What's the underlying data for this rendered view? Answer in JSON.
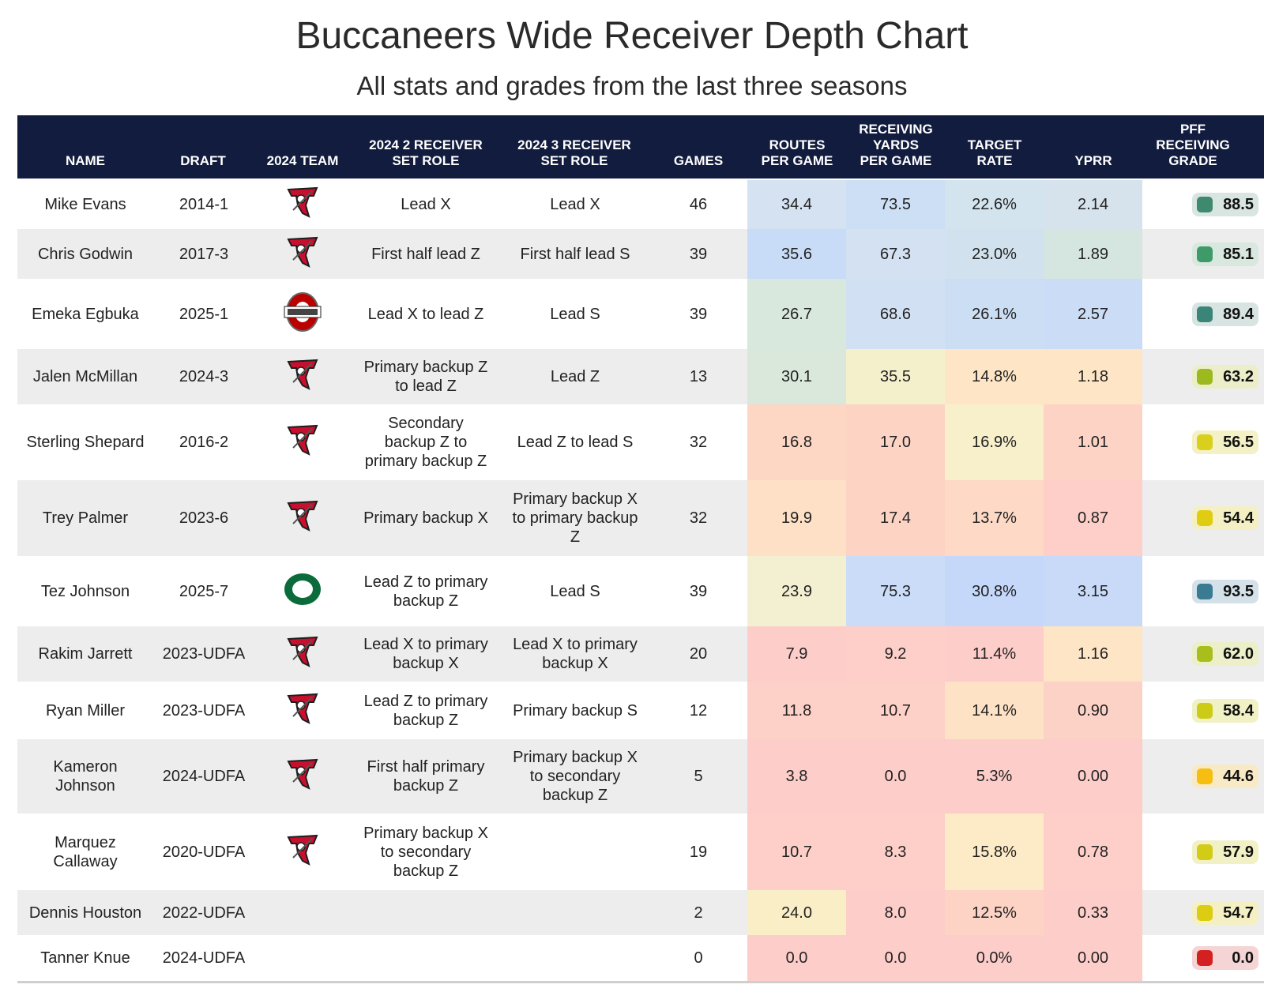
{
  "title": "Buccaneers Wide Receiver Depth Chart",
  "subtitle": "All stats and grades from the last three seasons",
  "headers": {
    "name": "NAME",
    "draft": "DRAFT",
    "team": "2024 TEAM",
    "role2": [
      "2024 2 RECEIVER",
      "SET ROLE"
    ],
    "role3": [
      "2024 3 RECEIVER",
      "SET ROLE"
    ],
    "games": "GAMES",
    "routes": [
      "ROUTES",
      "PER GAME"
    ],
    "yards": [
      "RECEIVING",
      "YARDS",
      "PER GAME"
    ],
    "target": [
      "TARGET",
      "RATE"
    ],
    "yprr": "YPRR",
    "grade": [
      "PFF",
      "RECEIVING",
      "GRADE"
    ]
  },
  "rows": [
    {
      "name": [
        "Mike Evans"
      ],
      "draft": "2014-1",
      "team": "buccaneers-logo",
      "role2": [
        "Lead X"
      ],
      "role3": [
        "Lead X"
      ],
      "games": "46",
      "routes": "34.4",
      "yards": "73.5",
      "target": "22.6%",
      "yprr": "2.14",
      "grade": "88.5",
      "colors": {
        "routes": "#d5e2f2",
        "yards": "#cddff5",
        "target": "#d4e4ee",
        "yprr": "#d6e3ec",
        "gradebg": "#d9e5e1",
        "dot": "#3f8a6f"
      }
    },
    {
      "name": [
        "Chris Godwin"
      ],
      "draft": "2017-3",
      "team": "buccaneers-logo",
      "role2": [
        "First half lead Z"
      ],
      "role3": [
        "First half lead S"
      ],
      "games": "39",
      "routes": "35.6",
      "yards": "67.3",
      "target": "23.0%",
      "yprr": "1.89",
      "grade": "85.1",
      "colors": {
        "routes": "#c9dcf7",
        "yards": "#d4e1f2",
        "target": "#d1e2ee",
        "yprr": "#d5e6e1",
        "gradebg": "#d9e8de",
        "dot": "#3f9a6a"
      }
    },
    {
      "name": [
        "Emeka Egbuka"
      ],
      "draft": "2025-1",
      "team": "ohio-state-logo",
      "role2": [
        "Lead X to lead Z"
      ],
      "role3": [
        "Lead S"
      ],
      "games": "39",
      "routes": "26.7",
      "yards": "68.6",
      "target": "26.1%",
      "yprr": "2.57",
      "grade": "89.4",
      "colors": {
        "routes": "#d9e8dc",
        "yards": "#d2e0f3",
        "target": "#ccdef4",
        "yprr": "#cbdcf7",
        "gradebg": "#d8e4e2",
        "dot": "#3a8577"
      }
    },
    {
      "name": [
        "Jalen McMillan"
      ],
      "draft": "2024-3",
      "team": "buccaneers-logo",
      "role2": [
        "Primary backup Z",
        "to lead Z"
      ],
      "role3": [
        "Lead Z"
      ],
      "games": "13",
      "routes": "30.1",
      "yards": "35.5",
      "target": "14.8%",
      "yprr": "1.18",
      "grade": "63.2",
      "colors": {
        "routes": "#d9e8da",
        "yards": "#f5f0cc",
        "target": "#fde5c5",
        "yprr": "#fde5c5",
        "gradebg": "#eceec9",
        "dot": "#9cba1e"
      }
    },
    {
      "name": [
        "Sterling Shepard"
      ],
      "draft": "2016-2",
      "team": "buccaneers-logo",
      "role2": [
        "Secondary",
        "backup Z to",
        "primary backup Z"
      ],
      "role3": [
        "Lead Z to lead S"
      ],
      "games": "32",
      "routes": "16.8",
      "yards": "17.0",
      "target": "16.9%",
      "yprr": "1.01",
      "grade": "56.5",
      "colors": {
        "routes": "#fdd6c4",
        "yards": "#fdd3c4",
        "target": "#f8efcb",
        "yprr": "#fdd3c6",
        "gradebg": "#f4f1c6",
        "dot": "#d8d01c"
      }
    },
    {
      "name": [
        "Trey Palmer"
      ],
      "draft": "2023-6",
      "team": "buccaneers-logo",
      "role2": [
        "Primary backup X"
      ],
      "role3": [
        "Primary backup X",
        "to primary backup",
        "Z"
      ],
      "games": "32",
      "routes": "19.9",
      "yards": "17.4",
      "target": "13.7%",
      "yprr": "0.87",
      "grade": "54.4",
      "colors": {
        "routes": "#fde0c5",
        "yards": "#fdd3c4",
        "target": "#fdd9c6",
        "yprr": "#fdcfc8",
        "gradebg": "#f4f0c4",
        "dot": "#e0cc10"
      }
    },
    {
      "name": [
        "Tez Johnson"
      ],
      "draft": "2025-7",
      "team": "oregon-logo",
      "role2": [
        "Lead Z to primary",
        "backup Z"
      ],
      "role3": [
        "Lead S"
      ],
      "games": "39",
      "routes": "23.9",
      "yards": "75.3",
      "target": "30.8%",
      "yprr": "3.15",
      "grade": "93.5",
      "colors": {
        "routes": "#f3efd1",
        "yards": "#cadcf8",
        "target": "#c5d8f9",
        "yprr": "#c8daf8",
        "gradebg": "#d5e1e8",
        "dot": "#3a7a92"
      }
    },
    {
      "name": [
        "Rakim Jarrett"
      ],
      "draft": "2023-UDFA",
      "team": "buccaneers-logo",
      "role2": [
        "Lead X to primary",
        "backup X"
      ],
      "role3": [
        "Lead X to primary",
        "backup X"
      ],
      "games": "20",
      "routes": "7.9",
      "yards": "9.2",
      "target": "11.4%",
      "yprr": "1.16",
      "grade": "62.0",
      "colors": {
        "routes": "#fdcdc9",
        "yards": "#fdcfc8",
        "target": "#fdcdc9",
        "yprr": "#fde5c5",
        "gradebg": "#ecefc8",
        "dot": "#a8be1c"
      }
    },
    {
      "name": [
        "Ryan Miller"
      ],
      "draft": "2023-UDFA",
      "team": "buccaneers-logo",
      "role2": [
        "Lead Z to primary",
        "backup Z"
      ],
      "role3": [
        "Primary backup S"
      ],
      "games": "12",
      "routes": "11.8",
      "yards": "10.7",
      "target": "14.1%",
      "yprr": "0.90",
      "grade": "58.4",
      "colors": {
        "routes": "#fdd0c8",
        "yards": "#fdd0c8",
        "target": "#fde2c5",
        "yprr": "#fdd2c6",
        "gradebg": "#f1f1c6",
        "dot": "#cccc18"
      }
    },
    {
      "name": [
        "Kameron",
        "Johnson"
      ],
      "draft": "2024-UDFA",
      "team": "buccaneers-logo",
      "role2": [
        "First half primary",
        "backup Z"
      ],
      "role3": [
        "Primary backup X",
        "to secondary",
        "backup Z"
      ],
      "games": "5",
      "routes": "3.8",
      "yards": "0.0",
      "target": "5.3%",
      "yprr": "0.00",
      "grade": "44.6",
      "colors": {
        "routes": "#fdcdc9",
        "yards": "#fdcdc9",
        "target": "#fdcdc9",
        "yprr": "#fdcdc9",
        "gradebg": "#f8eac4",
        "dot": "#f5be10"
      }
    },
    {
      "name": [
        "Marquez",
        "Callaway"
      ],
      "draft": "2020-UDFA",
      "team": "buccaneers-logo",
      "role2": [
        "Primary backup X",
        "to secondary",
        "backup Z"
      ],
      "role3": [],
      "games": "19",
      "routes": "10.7",
      "yards": "8.3",
      "target": "15.8%",
      "yprr": "0.78",
      "grade": "57.9",
      "colors": {
        "routes": "#fdcfc8",
        "yards": "#fdcfc8",
        "target": "#fcebc6",
        "yprr": "#fdcfc8",
        "gradebg": "#f2f1c6",
        "dot": "#d2cc16"
      }
    },
    {
      "name": [
        "Dennis Houston"
      ],
      "draft": "2022-UDFA",
      "team": "",
      "role2": [],
      "role3": [],
      "games": "2",
      "routes": "24.0",
      "yards": "8.0",
      "target": "12.5%",
      "yprr": "0.33",
      "grade": "54.7",
      "colors": {
        "routes": "#faeec7",
        "yards": "#fdcdc9",
        "target": "#fdd3c6",
        "yprr": "#fdcdc9",
        "gradebg": "#f4f0c4",
        "dot": "#dccc12"
      }
    },
    {
      "name": [
        "Tanner Knue"
      ],
      "draft": "2024-UDFA",
      "team": "",
      "role2": [],
      "role3": [],
      "games": "0",
      "routes": "0.0",
      "yards": "0.0",
      "target": "0.0%",
      "yprr": "0.00",
      "grade": "0.0",
      "colors": {
        "routes": "#fdcdc9",
        "yards": "#fdcdc9",
        "target": "#fdcdc9",
        "yprr": "#fdcdc9",
        "gradebg": "#f4d4d4",
        "dot": "#d42020"
      }
    }
  ]
}
